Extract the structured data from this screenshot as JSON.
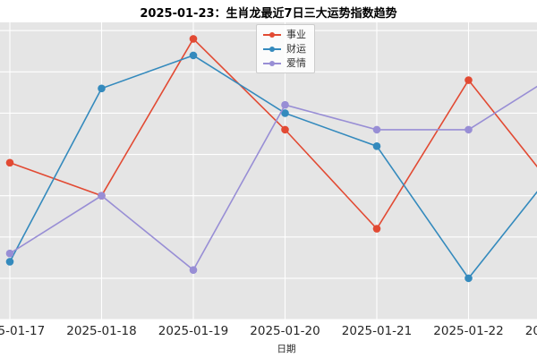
{
  "chart_data": {
    "type": "line",
    "title": "2025-01-23：生肖龙最近7日三大运势指数趋势",
    "xlabel": "日期",
    "x": [
      "2025-01-17",
      "2025-01-18",
      "2025-01-19",
      "2025-01-20",
      "2025-01-21",
      "2025-01-22",
      "2025-01-23"
    ],
    "series": [
      {
        "name": "事业",
        "color": "#E24A33",
        "values": [
          79,
          75,
          94,
          83,
          71,
          89,
          75
        ]
      },
      {
        "name": "财运",
        "color": "#348ABD",
        "values": [
          67,
          88,
          92,
          85,
          81,
          65,
          79
        ]
      },
      {
        "name": "爱情",
        "color": "#988ED5",
        "values": [
          68,
          75,
          66,
          86,
          83,
          83,
          90
        ]
      }
    ],
    "ylim": [
      60,
      96
    ],
    "grid": true,
    "gridline_step": 5,
    "plot_bg": "#E5E5E5",
    "grid_color": "#FFFFFF",
    "tick_color": "#262626",
    "legend_position": "upper center-left"
  }
}
